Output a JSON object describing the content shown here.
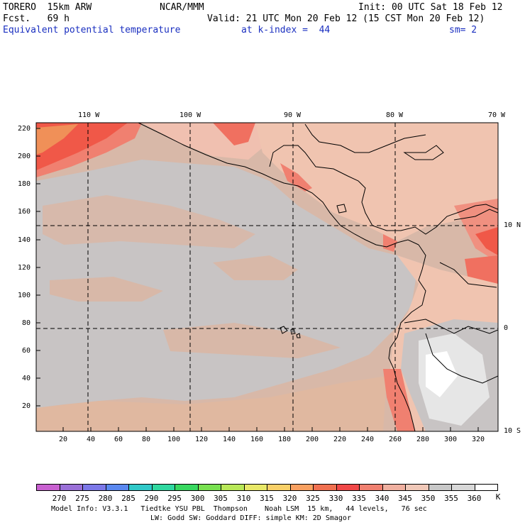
{
  "header": {
    "model": "TORERO  15km ARW",
    "org": "NCAR/MMM",
    "init": "Init: 00 UTC Sat 18 Feb 12",
    "fcst": "Fcst.   69 h",
    "valid": "Valid: 21 UTC Mon 20 Feb 12 (15 CST Mon 20 Feb 12)",
    "field": "Equivalent potential temperature",
    "level": "at k-index =  44",
    "smooth": "sm= 2"
  },
  "map": {
    "top_lon_labels": [
      "110 W",
      "100 W",
      "90 W",
      "80 W",
      "70 W"
    ],
    "right_lat_labels": [
      "10 N",
      "0",
      "10 S"
    ],
    "y_tick_labels": [
      "220",
      "200",
      "180",
      "160",
      "140",
      "120",
      "100",
      "80",
      "60",
      "40",
      "20"
    ],
    "x_tick_labels": [
      "20",
      "40",
      "60",
      "80",
      "100",
      "120",
      "140",
      "160",
      "180",
      "200",
      "220",
      "240",
      "260",
      "280",
      "300",
      "320"
    ]
  },
  "legend": {
    "unit": "K",
    "levels": [
      "270",
      "275",
      "280",
      "285",
      "290",
      "295",
      "300",
      "305",
      "310",
      "315",
      "320",
      "325",
      "330",
      "335",
      "340",
      "345",
      "350",
      "355",
      "360"
    ],
    "colors": [
      "#c860d0",
      "#9a70d8",
      "#7c78e8",
      "#5a88f0",
      "#30c8c8",
      "#30d8a0",
      "#38d860",
      "#78e050",
      "#b8e858",
      "#e8e868",
      "#f8d068",
      "#f8a060",
      "#f07050",
      "#f04848",
      "#f08070",
      "#f0b0a0",
      "#f0c8b8",
      "#c8c8c8",
      "#d8d8d8",
      "#ffffff"
    ]
  },
  "footer": {
    "line1": "Model Info: V3.3.1   Tiedtke YSU PBL  Thompson    Noah LSM  15 km,   44 levels,   76 sec",
    "line2": "LW: Godd SW: Goddard DIFF: simple KM: 2D Smagor"
  }
}
